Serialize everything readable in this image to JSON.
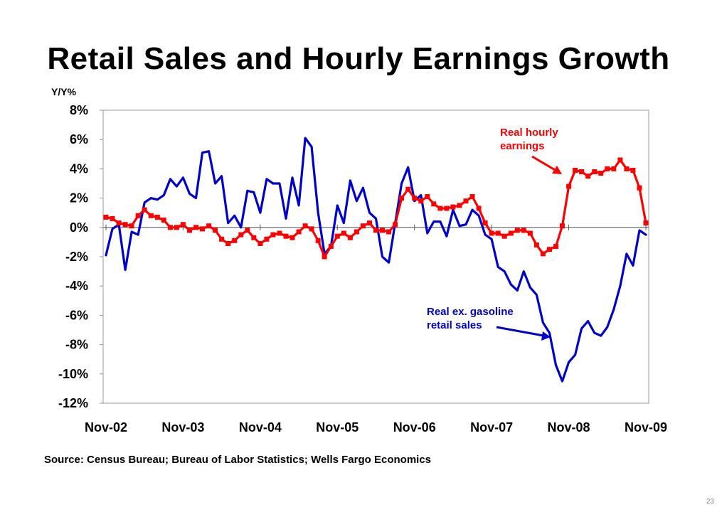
{
  "slide": {
    "title": "Retail Sales and Hourly Earnings Growth",
    "source": "Source: Census Bureau; Bureau of Labor Statistics; Wells Fargo Economics",
    "page_number": "23"
  },
  "chart_data": {
    "type": "line",
    "title": "Retail Sales and Hourly Earnings Growth",
    "ylabel": "Y/Y%",
    "xlabel": "",
    "ylim": [
      -12,
      8
    ],
    "yticks": [
      "8%",
      "6%",
      "4%",
      "2%",
      "0%",
      "-2%",
      "-4%",
      "-6%",
      "-8%",
      "-10%",
      "-12%"
    ],
    "ytick_values": [
      8,
      6,
      4,
      2,
      0,
      -2,
      -4,
      -6,
      -8,
      -10,
      -12
    ],
    "x_tick_labels": [
      "Nov-02",
      "Nov-03",
      "Nov-04",
      "Nov-05",
      "Nov-06",
      "Nov-07",
      "Nov-08",
      "Nov-09"
    ],
    "grid": false,
    "legend": "none",
    "annotations": [
      {
        "text": [
          "Real hourly",
          "earnings"
        ],
        "color": "#ff0000",
        "series": "Real hourly earnings"
      },
      {
        "text": [
          "Real ex. gasoline",
          "retail sales"
        ],
        "color": "#0000cc",
        "series": "Real ex. gasoline retail sales"
      }
    ],
    "series": [
      {
        "name": "Real ex. gasoline retail sales",
        "color": "#0000cc",
        "marker": "none",
        "values": [
          -1.9,
          -0.1,
          0.2,
          -2.9,
          -0.3,
          -0.5,
          1.7,
          2.0,
          1.9,
          2.2,
          3.3,
          2.8,
          3.4,
          2.3,
          2.0,
          5.1,
          5.2,
          3.0,
          3.5,
          0.3,
          0.8,
          0.0,
          2.5,
          2.4,
          1.0,
          3.3,
          3.0,
          3.0,
          0.6,
          3.4,
          1.5,
          6.1,
          5.5,
          1.0,
          -1.8,
          -1.3,
          1.5,
          0.3,
          3.2,
          1.8,
          2.7,
          1.0,
          0.6,
          -2.0,
          -2.4,
          0.3,
          3.0,
          4.1,
          1.8,
          2.2,
          -0.4,
          0.4,
          0.4,
          -0.6,
          1.2,
          0.1,
          0.2,
          1.2,
          0.8,
          -0.5,
          -0.8,
          -2.7,
          -3.0,
          -3.9,
          -4.3,
          -3.0,
          -4.1,
          -4.6,
          -6.5,
          -7.2,
          -9.4,
          -10.5,
          -9.2,
          -8.7,
          -6.9,
          -6.4,
          -7.2,
          -7.4,
          -6.8,
          -5.6,
          -4.0,
          -1.8,
          -2.6,
          -0.2,
          -0.5
        ]
      },
      {
        "name": "Real hourly earnings",
        "color": "#ff0000",
        "marker": "square",
        "values": [
          0.7,
          0.6,
          0.3,
          0.2,
          0.1,
          0.8,
          1.2,
          0.8,
          0.7,
          0.5,
          0.0,
          0.0,
          0.2,
          -0.2,
          0.0,
          -0.1,
          0.1,
          -0.2,
          -0.8,
          -1.1,
          -0.9,
          -0.5,
          -0.2,
          -0.7,
          -1.1,
          -0.8,
          -0.5,
          -0.4,
          -0.6,
          -0.7,
          -0.3,
          0.1,
          -0.1,
          -0.9,
          -2.0,
          -1.3,
          -0.6,
          -0.4,
          -0.7,
          -0.3,
          0.1,
          0.3,
          -0.2,
          -0.2,
          -0.3,
          0.2,
          2.0,
          2.6,
          2.0,
          1.8,
          2.1,
          1.6,
          1.3,
          1.3,
          1.4,
          1.5,
          1.8,
          2.1,
          1.3,
          0.3,
          -0.4,
          -0.4,
          -0.6,
          -0.4,
          -0.2,
          -0.2,
          -0.4,
          -1.2,
          -1.8,
          -1.5,
          -1.3,
          0.1,
          2.8,
          3.9,
          3.8,
          3.5,
          3.8,
          3.7,
          4.0,
          4.0,
          4.6,
          4.0,
          3.9,
          2.7,
          0.3
        ]
      }
    ]
  }
}
